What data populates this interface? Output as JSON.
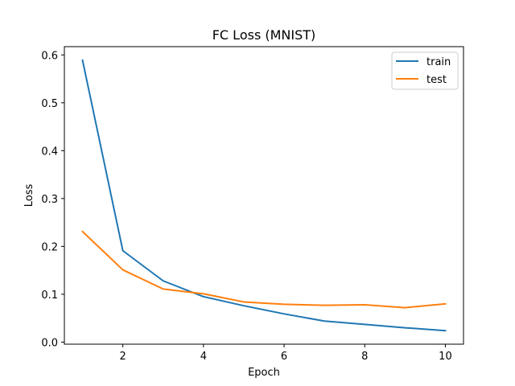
{
  "chart_data": {
    "type": "line",
    "title": "FC Loss (MNIST)",
    "xlabel": "Epoch",
    "ylabel": "Loss",
    "x": [
      1,
      2,
      3,
      4,
      5,
      6,
      7,
      8,
      9,
      10
    ],
    "xlim": [
      0.55,
      10.45
    ],
    "ylim": [
      -0.0043,
      0.6173
    ],
    "xticks": [
      2,
      4,
      6,
      8,
      10
    ],
    "yticks": [
      0.0,
      0.1,
      0.2,
      0.3,
      0.4,
      0.5,
      0.6
    ],
    "ytick_labels": [
      "0.0",
      "0.1",
      "0.2",
      "0.3",
      "0.4",
      "0.5",
      "0.6"
    ],
    "grid": false,
    "legend_position": "top-right",
    "series": [
      {
        "name": "train",
        "color": "#1f77b4",
        "values": [
          0.589,
          0.191,
          0.128,
          0.095,
          0.076,
          0.059,
          0.044,
          0.037,
          0.03,
          0.024
        ]
      },
      {
        "name": "test",
        "color": "#ff7f0e",
        "values": [
          0.231,
          0.151,
          0.111,
          0.101,
          0.084,
          0.079,
          0.077,
          0.078,
          0.072,
          0.08
        ]
      }
    ]
  }
}
